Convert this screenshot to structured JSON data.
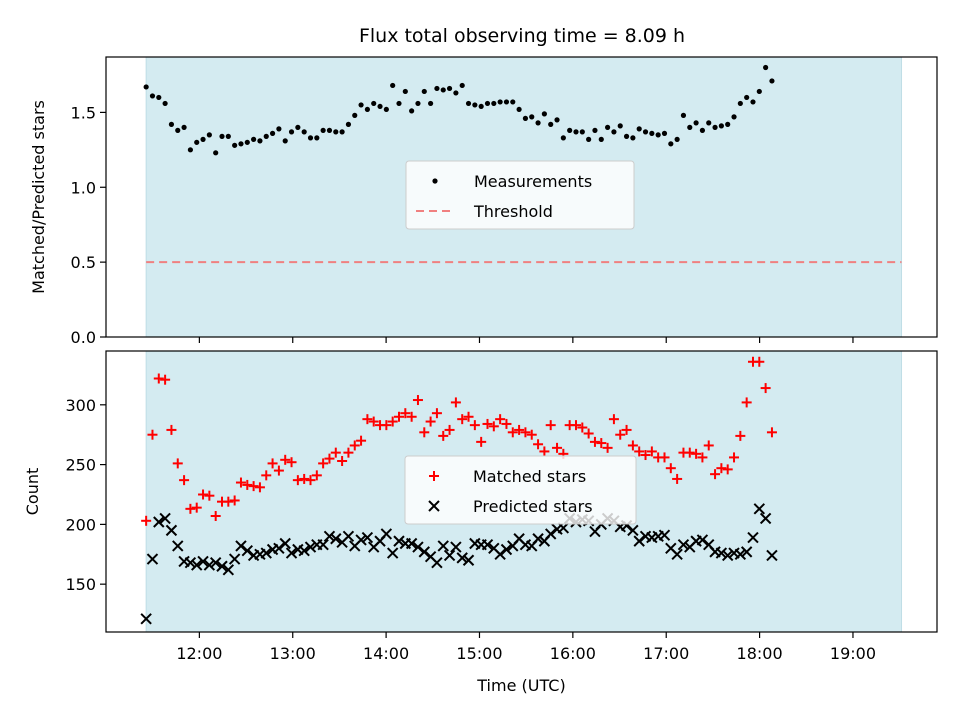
{
  "figure": {
    "title": "Flux total observing time = 8.09 h",
    "xlabel": "Time (UTC)"
  },
  "chart_data": [
    {
      "type": "scatter",
      "ylabel": "Matched/Predicted stars",
      "ylim": [
        0.0,
        1.87
      ],
      "yticks": [
        "0.0",
        "0.5",
        "1.0",
        "1.5"
      ],
      "ytick_values": [
        0.0,
        0.5,
        1.0,
        1.5
      ],
      "shaded_span": {
        "start_hour": 11.43,
        "end_hour": 19.52,
        "color": "#d4ebf1"
      },
      "legend": {
        "position": "center",
        "entries": [
          "Measurements",
          "Threshold"
        ]
      },
      "series": [
        {
          "name": "Measurements",
          "marker": "dot",
          "color": "#000000",
          "t_start_hour": 11.43,
          "t_step_hour": 0.0677,
          "values": [
            1.67,
            1.61,
            1.6,
            1.56,
            1.42,
            1.38,
            1.4,
            1.25,
            1.3,
            1.32,
            1.35,
            1.23,
            1.34,
            1.34,
            1.28,
            1.29,
            1.3,
            1.32,
            1.31,
            1.34,
            1.36,
            1.39,
            1.31,
            1.37,
            1.4,
            1.37,
            1.33,
            1.33,
            1.38,
            1.38,
            1.37,
            1.37,
            1.42,
            1.48,
            1.55,
            1.52,
            1.56,
            1.54,
            1.52,
            1.68,
            1.56,
            1.64,
            1.51,
            1.56,
            1.64,
            1.56,
            1.66,
            1.65,
            1.66,
            1.63,
            1.68,
            1.56,
            1.55,
            1.54,
            1.56,
            1.56,
            1.57,
            1.57,
            1.57,
            1.52,
            1.46,
            1.47,
            1.43,
            1.49,
            1.42,
            1.45,
            1.33,
            1.38,
            1.37,
            1.37,
            1.32,
            1.38,
            1.32,
            1.4,
            1.37,
            1.41,
            1.34,
            1.33,
            1.39,
            1.37,
            1.36,
            1.35,
            1.36,
            1.29,
            1.32,
            1.48,
            1.4,
            1.43,
            1.38,
            1.43,
            1.4,
            1.41,
            1.42,
            1.47,
            1.56,
            1.6,
            1.57,
            1.64,
            1.8,
            1.71
          ]
        },
        {
          "name": "Threshold",
          "style": "dashed",
          "color": "#f08080",
          "value": 0.5
        }
      ]
    },
    {
      "type": "scatter",
      "ylabel": "Count",
      "ylim": [
        110,
        345
      ],
      "yticks": [
        "150",
        "200",
        "250",
        "300"
      ],
      "ytick_values": [
        150,
        200,
        250,
        300
      ],
      "xlim_hours": [
        11.0,
        19.9
      ],
      "xticks": [
        "12:00",
        "13:00",
        "14:00",
        "15:00",
        "16:00",
        "17:00",
        "18:00",
        "19:00"
      ],
      "xtick_hours": [
        12,
        13,
        14,
        15,
        16,
        17,
        18,
        19
      ],
      "shaded_span": {
        "start_hour": 11.43,
        "end_hour": 19.52,
        "color": "#d4ebf1"
      },
      "legend": {
        "position": "center",
        "entries": [
          "Matched stars",
          "Predicted stars"
        ]
      },
      "series": [
        {
          "name": "Matched stars",
          "marker": "plus",
          "color": "#ff0000",
          "t_start_hour": 11.43,
          "t_step_hour": 0.0677,
          "values": [
            203,
            275,
            322,
            321,
            279,
            251,
            237,
            213,
            214,
            225,
            224,
            207,
            219,
            219,
            220,
            235,
            233,
            232,
            231,
            241,
            251,
            245,
            254,
            252,
            237,
            238,
            237,
            241,
            251,
            255,
            260,
            253,
            260,
            266,
            270,
            288,
            286,
            283,
            283,
            286,
            290,
            293,
            290,
            304,
            277,
            286,
            293,
            274,
            279,
            302,
            288,
            290,
            283,
            269,
            284,
            282,
            288,
            284,
            277,
            279,
            277,
            275,
            267,
            261,
            283,
            264,
            259,
            283,
            283,
            281,
            276,
            269,
            268,
            264,
            288,
            275,
            279,
            266,
            261,
            258,
            261,
            256,
            256,
            247,
            238,
            260,
            260,
            259,
            256,
            266,
            242,
            247,
            246,
            256,
            274,
            302,
            336,
            336,
            314,
            277
          ]
        },
        {
          "name": "Predicted stars",
          "marker": "x",
          "color": "#000000",
          "t_start_hour": 11.43,
          "t_step_hour": 0.0677,
          "values": [
            121,
            171,
            202,
            205,
            195,
            182,
            169,
            168,
            166,
            169,
            166,
            168,
            165,
            162,
            171,
            182,
            178,
            174,
            175,
            176,
            179,
            180,
            184,
            176,
            179,
            178,
            181,
            183,
            183,
            190,
            188,
            185,
            190,
            182,
            187,
            189,
            181,
            186,
            192,
            176,
            186,
            184,
            184,
            181,
            177,
            173,
            168,
            182,
            174,
            181,
            172,
            170,
            184,
            183,
            183,
            180,
            175,
            179,
            182,
            188,
            183,
            182,
            188,
            186,
            192,
            196,
            197,
            205,
            202,
            204,
            203,
            194,
            200,
            205,
            203,
            198,
            199,
            195,
            186,
            190,
            189,
            190,
            191,
            180,
            175,
            183,
            181,
            186,
            187,
            183,
            177,
            176,
            174,
            176,
            175,
            177,
            189,
            213,
            205,
            174
          ]
        }
      ]
    }
  ]
}
